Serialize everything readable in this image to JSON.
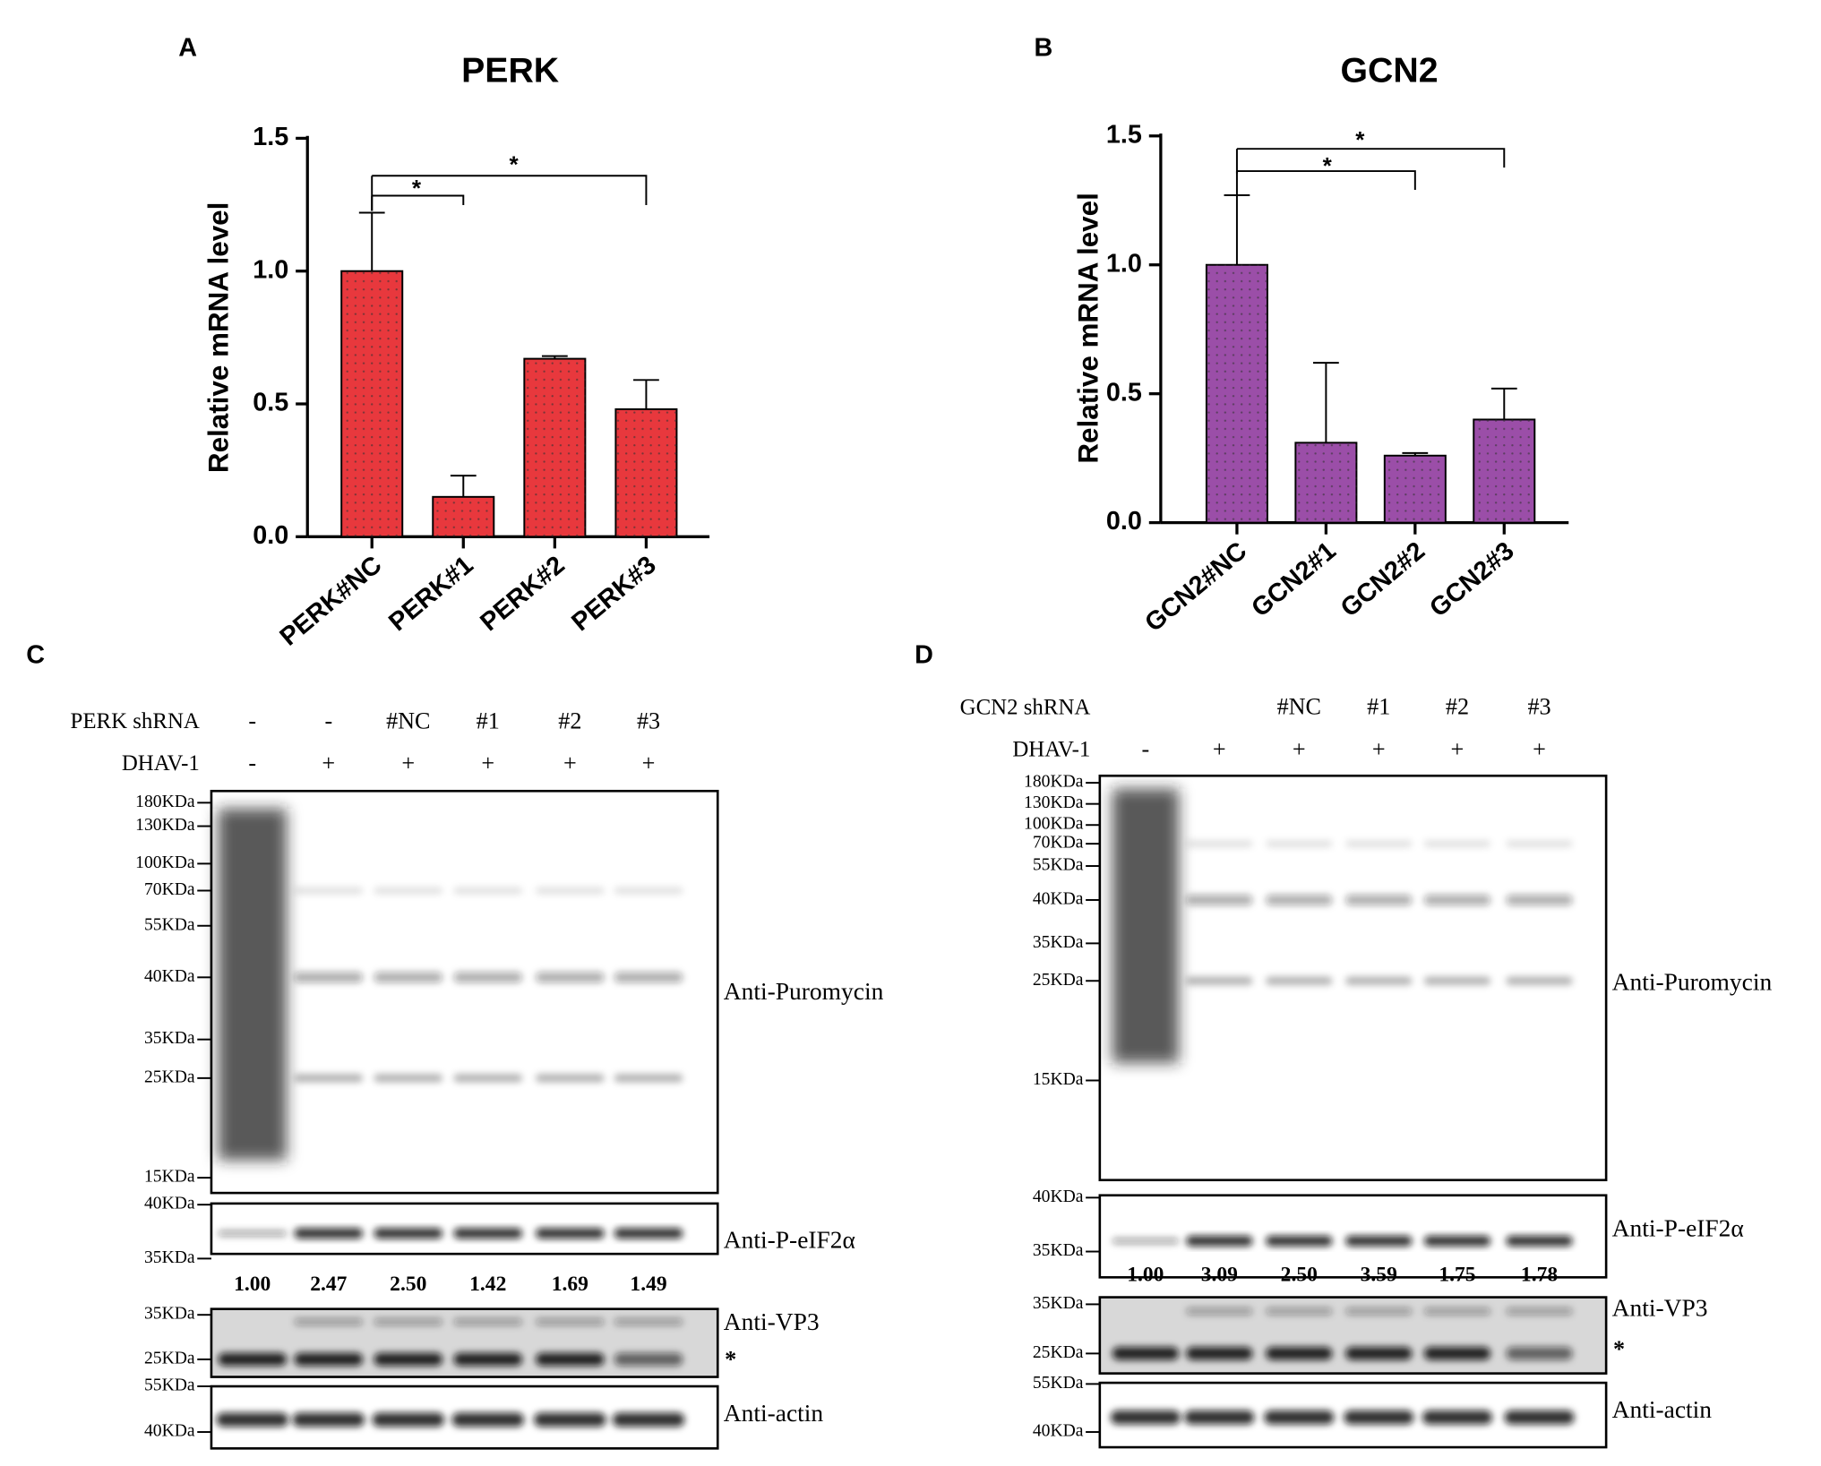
{
  "chart_data": [
    {
      "type": "bar",
      "panel_label": "A",
      "title": "PERK",
      "y_label": "Relative mRNA level",
      "categories": [
        "PERK#NC",
        "PERK#1",
        "PERK#2",
        "PERK#3"
      ],
      "values": [
        1.0,
        0.15,
        0.67,
        0.48
      ],
      "errors": [
        0.22,
        0.08,
        0.01,
        0.11
      ],
      "color": "#e8383d",
      "ylim": [
        0,
        1.5
      ],
      "yticks": [
        {
          "value": 0,
          "label": "0.0"
        },
        {
          "value": 0.5,
          "label": "0.5"
        },
        {
          "value": 1,
          "label": "1.0"
        },
        {
          "value": 1.5,
          "label": "1.5"
        }
      ],
      "annotations": [
        "*",
        "*"
      ]
    },
    {
      "type": "bar",
      "panel_label": "B",
      "title": "GCN2",
      "y_label": "Relative mRNA level",
      "categories": [
        "GCN2#NC",
        "GCN2#1",
        "GCN2#2",
        "GCN2#3"
      ],
      "values": [
        1.0,
        0.31,
        0.26,
        0.4
      ],
      "errors": [
        0.27,
        0.31,
        0.01,
        0.12
      ],
      "color": "#9b4ea8",
      "ylim": [
        0,
        1.5
      ],
      "yticks": [
        {
          "value": 0,
          "label": "0.0"
        },
        {
          "value": 0.5,
          "label": "0.5"
        },
        {
          "value": 1,
          "label": "1.0"
        },
        {
          "value": 1.5,
          "label": "1.5"
        }
      ],
      "annotations": [
        "*",
        "*"
      ]
    }
  ],
  "panels": [
    {
      "panel_label": "C",
      "rows": [
        {
          "label": "PERK shRNA",
          "lanes": [
            "-",
            "-",
            "#NC",
            "#1",
            "#2",
            "#3"
          ]
        },
        {
          "label": "DHAV-1",
          "lanes": [
            "-",
            "+",
            "+",
            "+",
            "+",
            "+"
          ]
        }
      ],
      "blots": [
        {
          "label": "Anti-Puromycin",
          "markers": [
            "180KDa",
            "130KDa",
            "100KDa",
            "70KDa",
            "55KDa",
            "40KDa",
            "35KDa",
            "25KDa",
            "15KDa"
          ]
        },
        {
          "label": "Anti-P-eIF2α",
          "markers": [
            "40KDa",
            "35KDa"
          ],
          "quantification": [
            "1.00",
            "2.47",
            "2.50",
            "1.42",
            "1.69",
            "1.49"
          ]
        },
        {
          "label": "Anti-VP3",
          "markers": [
            "35KDa",
            "25KDa"
          ],
          "note": "*"
        },
        {
          "label": "Anti-actin",
          "markers": [
            "55KDa",
            "40KDa"
          ]
        }
      ]
    },
    {
      "panel_label": "D",
      "rows": [
        {
          "label": "GCN2 shRNA",
          "lanes": [
            null,
            null,
            "#NC",
            "#1",
            "#2",
            "#3"
          ]
        },
        {
          "label": "DHAV-1",
          "lanes": [
            "-",
            "+",
            "+",
            "+",
            "+",
            "+"
          ]
        }
      ],
      "blots": [
        {
          "label": "Anti-Puromycin",
          "markers": [
            "180KDa",
            "130KDa",
            "100KDa",
            "70KDa",
            "55KDa",
            "40KDa",
            "35KDa",
            "25KDa",
            "15KDa"
          ]
        },
        {
          "label": "Anti-P-eIF2α",
          "markers": [
            "40KDa",
            "35KDa"
          ],
          "quantification": [
            "1.00",
            "3.09",
            "2.50",
            "3.59",
            "1.75",
            "1.78"
          ]
        },
        {
          "label": "Anti-VP3",
          "markers": [
            "35KDa",
            "25KDa"
          ],
          "note": "*"
        },
        {
          "label": "Anti-actin",
          "markers": [
            "55KDa",
            "40KDa"
          ]
        }
      ]
    }
  ]
}
